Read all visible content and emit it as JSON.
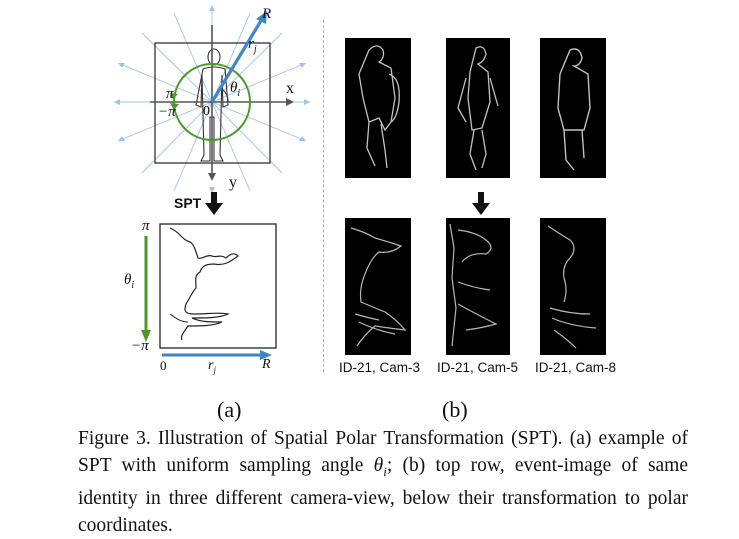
{
  "figure": {
    "panel_a": {
      "label": "(a)",
      "axis_x": "x",
      "axis_y": "y",
      "radius_label": "R",
      "rj_label": "r",
      "rj_sub": "j",
      "theta_label": "θ",
      "theta_sub": "i",
      "pi": "π",
      "minus_pi": "−π",
      "origin": "0",
      "spt_label": "SPT",
      "polar_top": "π",
      "polar_bottom": "−π",
      "polar_theta": "θ",
      "polar_theta_sub": "i",
      "polar_zero": "0",
      "polar_rj": "r",
      "polar_rj_sub": "j",
      "polar_R": "R",
      "colors": {
        "ray": "#9ec3e8",
        "arrow_blue": "#3f86c8",
        "circle_green": "#4a9a2a",
        "axis": "#555555"
      }
    },
    "panel_b": {
      "label": "(b)",
      "cams": [
        {
          "label": "ID-21, Cam-3"
        },
        {
          "label": "ID-21, Cam-5"
        },
        {
          "label": "ID-21, Cam-8"
        }
      ]
    },
    "caption": {
      "prefix": "Figure 3. Illustration of Spatial Polar Transformation (SPT). (a) example of SPT with uniform sampling angle ",
      "theta": "θ",
      "theta_sub": "i",
      "suffix": "; (b) top row, event-image of same identity in three different camera-view, below their transformation to polar coordinates."
    }
  }
}
